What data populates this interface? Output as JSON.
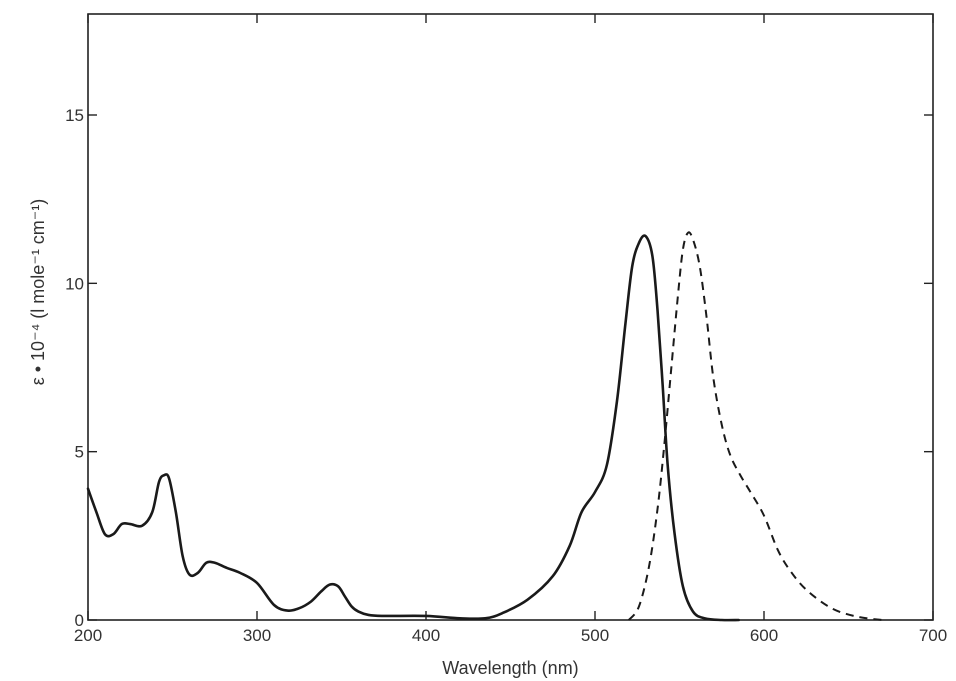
{
  "chart_data": {
    "type": "line",
    "title": "",
    "xlabel": "Wavelength (nm)",
    "ylabel": "ε • 10⁻⁴ (l mole⁻¹ cm⁻¹)",
    "xlim": [
      200,
      700
    ],
    "ylim": [
      0,
      18
    ],
    "x_ticks": [
      200,
      300,
      400,
      500,
      600,
      700
    ],
    "x_tick_labels": [
      "200",
      "300",
      "400",
      "500",
      "600",
      "700"
    ],
    "y_ticks": [
      0,
      5,
      10,
      15
    ],
    "y_tick_labels": [
      "0",
      "5",
      "10",
      "15"
    ],
    "grid": false,
    "legend": "none",
    "series": [
      {
        "style": "solid",
        "x": [
          200,
          205,
          210,
          215,
          220,
          225,
          232,
          238,
          242,
          245,
          248,
          252,
          256,
          260,
          265,
          270,
          275,
          282,
          290,
          300,
          310,
          318,
          325,
          332,
          338,
          343,
          348,
          352,
          356,
          360,
          366,
          375,
          400,
          420,
          435,
          445,
          460,
          475,
          485,
          492,
          500,
          507,
          513,
          518,
          522,
          526,
          530,
          534,
          537,
          540,
          543,
          547,
          552,
          558,
          565,
          575,
          585
        ],
        "y": [
          3.9,
          3.2,
          2.55,
          2.55,
          2.85,
          2.85,
          2.8,
          3.2,
          4.1,
          4.3,
          4.2,
          3.2,
          1.9,
          1.35,
          1.4,
          1.7,
          1.7,
          1.55,
          1.4,
          1.1,
          0.45,
          0.28,
          0.35,
          0.55,
          0.85,
          1.05,
          1.0,
          0.7,
          0.4,
          0.25,
          0.15,
          0.12,
          0.12,
          0.05,
          0.05,
          0.2,
          0.6,
          1.3,
          2.2,
          3.2,
          3.8,
          4.6,
          6.5,
          8.8,
          10.5,
          11.2,
          11.4,
          10.8,
          9.2,
          7.0,
          4.6,
          2.6,
          1.0,
          0.25,
          0.05,
          0.0,
          0.0
        ]
      },
      {
        "style": "dashed",
        "x": [
          520,
          526,
          532,
          537,
          541,
          545,
          549,
          552,
          555,
          558,
          562,
          566,
          570,
          575,
          580,
          586,
          592,
          600,
          608,
          615,
          625,
          640,
          655,
          670
        ],
        "y": [
          0.0,
          0.4,
          1.6,
          3.3,
          5.2,
          7.4,
          9.6,
          11.0,
          11.5,
          11.3,
          10.5,
          9.0,
          7.2,
          5.8,
          4.9,
          4.3,
          3.8,
          3.1,
          2.1,
          1.5,
          0.9,
          0.35,
          0.1,
          0.0
        ]
      }
    ]
  }
}
